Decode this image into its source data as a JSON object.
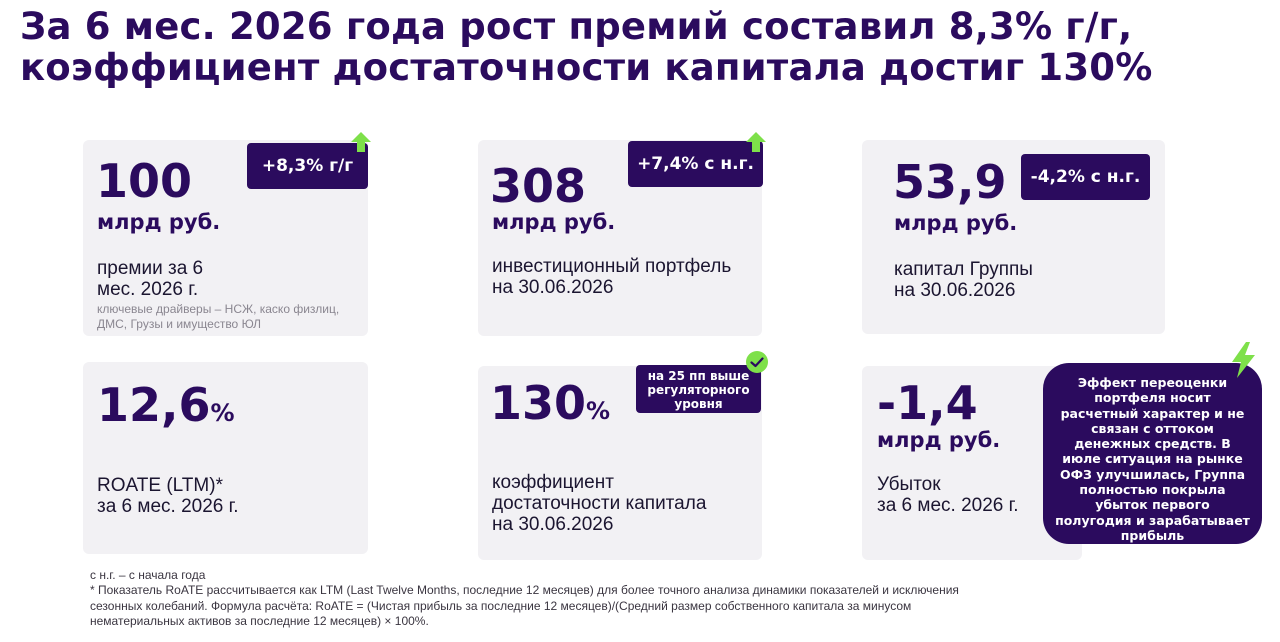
{
  "title": {
    "line1": "За 6 мес. 2026 года рост премий составил 8,3% г/г,",
    "line2": "коэффициент достаточности капитала достиг 130%"
  },
  "cards": {
    "premiums": {
      "value": "100",
      "unit": "млрд руб.",
      "badge": "+8,3% г/г",
      "desc_line1": "премии за 6",
      "desc_line2": "мес. 2026 г.",
      "note_line1": "ключевые драйверы – НСЖ, каско физлиц,",
      "note_line2": "ДМС, Грузы и имущество ЮЛ",
      "icon": "arrow-up-icon"
    },
    "portfolio": {
      "value": "308",
      "unit": "млрд руб.",
      "badge": "+7,4% с н.г.",
      "desc_line1": "инвестиционный портфель",
      "desc_line2": "на 30.06.2026",
      "icon": "arrow-up-icon"
    },
    "capital": {
      "value": "53,9",
      "unit": "млрд руб.",
      "badge": "-4,2% с н.г.",
      "desc_line1": "капитал Группы",
      "desc_line2": "на 30.06.2026"
    },
    "roate": {
      "value": "12,6",
      "pct": "%",
      "desc_line1": "ROATE (LTM)*",
      "desc_line2": "за 6 мес. 2026 г."
    },
    "adequacy": {
      "value": "130",
      "pct": "%",
      "badge_line1": "на 25 пп выше",
      "badge_line2": "регуляторного",
      "badge_line3": "уровня",
      "desc_line1": "коэффициент",
      "desc_line2": "достаточности капитала",
      "desc_line3": "на 30.06.2026",
      "icon": "check-badge-icon"
    },
    "loss": {
      "value": "-1,4",
      "unit": "млрд руб.",
      "desc_line1": "Убыток",
      "desc_line2": "за 6 мес. 2026 г.",
      "icon": "lightning-icon"
    }
  },
  "bubble": {
    "lines": [
      "Эффект переоценки",
      "портфеля носит",
      "расчетный характер и не",
      "связан с оттоком",
      "денежных средств. В",
      "июле ситуация на рынке",
      "ОФЗ улучшилась, Группа",
      "полностью покрыла",
      "убыток первого",
      "полугодия и зарабатывает",
      "прибыль"
    ]
  },
  "footnotes": {
    "line1": "с н.г. – с начала года",
    "line2": "* Показатель RoATE рассчитывается как LTM (Last Twelve Months, последние 12 месяцев) для более точного анализа динамики показателей и исключения",
    "line3": "сезонных колебаний. Формула расчёта: RoATE = (Чистая прибыль за последние 12 месяцев)/(Средний размер собственного капитала за минусом",
    "line4": "нематериальных активов за последние 12 месяцев) × 100%."
  },
  "colors": {
    "primary": "#2b0b5e",
    "accent_green": "#7ee04a",
    "card_bg": "#f2f1f4"
  }
}
